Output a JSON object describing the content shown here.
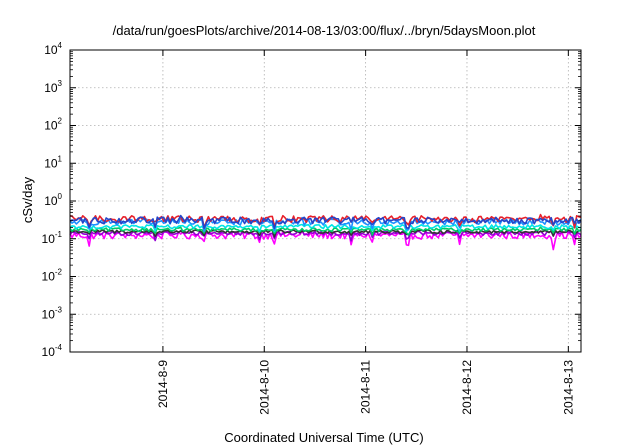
{
  "chart_data": {
    "type": "line",
    "title": "/data/run/goesPlots/archive/2014-08-13/03:00/flux/../bryn/5daysMoon.plot",
    "xlabel": "Coordinated Universal Time (UTC)",
    "ylabel": "cSv/day",
    "y_scale": "log",
    "ylim": [
      0.0001,
      10000
    ],
    "y_ticks": [
      {
        "base": "10",
        "exp": "4"
      },
      {
        "base": "10",
        "exp": "3"
      },
      {
        "base": "10",
        "exp": "2"
      },
      {
        "base": "10",
        "exp": "1"
      },
      {
        "base": "10",
        "exp": "0"
      },
      {
        "base": "10",
        "exp": "-1"
      },
      {
        "base": "10",
        "exp": "-2"
      },
      {
        "base": "10",
        "exp": "-3"
      },
      {
        "base": "10",
        "exp": "-4"
      }
    ],
    "xlim": [
      "2014-08-08 02:00",
      "2014-08-13 03:00"
    ],
    "x_ticks": [
      {
        "label": "2014-8-9",
        "date": "2014-08-09"
      },
      {
        "label": "2014-8-10",
        "date": "2014-08-10"
      },
      {
        "label": "2014-8-11",
        "date": "2014-08-11"
      },
      {
        "label": "2014-8-12",
        "date": "2014-08-12"
      },
      {
        "label": "2014-8-13",
        "date": "2014-08-13"
      }
    ],
    "grid": true,
    "series": [
      {
        "color": "#ff00ff",
        "level": 0.125,
        "amp": 0.22,
        "dips": 0.55
      },
      {
        "color": "#9400d3",
        "level": 0.14,
        "amp": 0.12,
        "dips": 0.3
      },
      {
        "color": "#333333",
        "level": 0.155,
        "amp": 0.1,
        "dips": 0.25
      },
      {
        "color": "#00cc66",
        "level": 0.175,
        "amp": 0.1,
        "dips": 0.25
      },
      {
        "color": "#00e5e5",
        "level": 0.21,
        "amp": 0.12,
        "dips": 0.25
      },
      {
        "color": "#1e90ff",
        "level": 0.28,
        "amp": 0.18,
        "dips": 0.35
      },
      {
        "color": "#e8202a",
        "level": 0.34,
        "amp": 0.2,
        "dips": 0.35
      },
      {
        "color": "#2545c8",
        "level": 0.31,
        "amp": 0.2,
        "dips": 0.35
      }
    ]
  }
}
